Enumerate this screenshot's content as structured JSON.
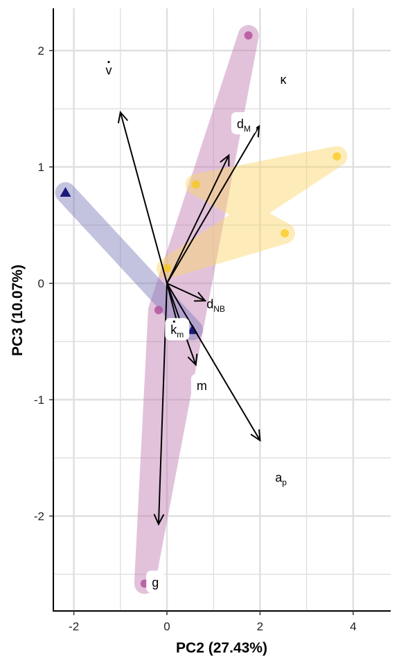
{
  "chart_data": {
    "type": "scatter",
    "subtype": "pca-biplot",
    "xlabel": "PC2 (27.43%)",
    "ylabel": "PC3 (10.07%)",
    "xlim": [
      -2.45,
      4.8
    ],
    "ylim": [
      -2.8,
      2.35
    ],
    "xticks": [
      -2,
      0,
      2,
      4
    ],
    "yticks": [
      -2,
      -1,
      0,
      1,
      2
    ],
    "grid": true,
    "groups": [
      {
        "id": "purple",
        "color": "#b5529c",
        "shape": "circle",
        "points": [
          [
            1.75,
            2.13
          ],
          [
            -0.18,
            -0.23
          ],
          [
            -0.48,
            -2.58
          ]
        ]
      },
      {
        "id": "yellow",
        "color": "#f9c80e",
        "shape": "circle",
        "points": [
          [
            3.65,
            1.09
          ],
          [
            0.62,
            0.85
          ],
          [
            2.53,
            0.43
          ],
          [
            0.0,
            0.13
          ]
        ]
      },
      {
        "id": "navy",
        "color": "#1a1a7a",
        "shape": "triangle",
        "points": [
          [
            -2.18,
            0.78
          ],
          [
            0.55,
            -0.4
          ]
        ]
      }
    ],
    "hulls": [
      {
        "group": "purple",
        "color": "#c07ab0",
        "points": [
          [
            1.75,
            2.13
          ],
          [
            -0.18,
            -0.23
          ],
          [
            -0.48,
            -2.58
          ]
        ]
      },
      {
        "group": "yellow",
        "color": "#fbd768",
        "points": [
          [
            3.65,
            1.09
          ],
          [
            0.62,
            0.85
          ],
          [
            2.53,
            0.43
          ],
          [
            0.0,
            0.13
          ]
        ]
      },
      {
        "group": "navy",
        "color": "#7b7bbb",
        "points": [
          [
            -2.18,
            0.78
          ],
          [
            0.55,
            -0.4
          ]
        ]
      }
    ],
    "loadings": [
      {
        "id": "vdot",
        "x": -1.0,
        "y": 1.47
      },
      {
        "id": "dM",
        "x": 1.33,
        "y": 1.1
      },
      {
        "id": "dM2",
        "x": 1.98,
        "y": 1.35
      },
      {
        "id": "dNB",
        "x": 0.82,
        "y": -0.15
      },
      {
        "id": "km",
        "x": 0.28,
        "y": -0.43
      },
      {
        "id": "m",
        "x": 0.62,
        "y": -0.7
      },
      {
        "id": "ap",
        "x": 2.0,
        "y": -1.35
      },
      {
        "id": "g",
        "x": -0.18,
        "y": -2.07
      }
    ],
    "labels": [
      {
        "text": "v",
        "dot": true,
        "sub": "",
        "x": -1.25,
        "y": 1.83,
        "boxed": false
      },
      {
        "text": "κ",
        "dot": false,
        "sub": "",
        "x": 2.5,
        "y": 1.75,
        "boxed": false
      },
      {
        "text": "d",
        "dot": false,
        "sub": "M",
        "x": 1.65,
        "y": 1.37,
        "boxed": true
      },
      {
        "text": "d",
        "dot": false,
        "sub": "NB",
        "x": 1.05,
        "y": -0.18,
        "boxed": false
      },
      {
        "text": "k",
        "dot": true,
        "sub": "m",
        "x": 0.22,
        "y": -0.4,
        "boxed": true
      },
      {
        "text": "m",
        "dot": false,
        "sub": "",
        "x": 0.75,
        "y": -0.88,
        "boxed": true
      },
      {
        "text": "a",
        "dot": false,
        "sub": "p",
        "x": 2.45,
        "y": -1.67,
        "boxed": false
      },
      {
        "text": "g",
        "dot": false,
        "sub": "",
        "x": -0.25,
        "y": -2.57,
        "boxed": true
      }
    ]
  }
}
